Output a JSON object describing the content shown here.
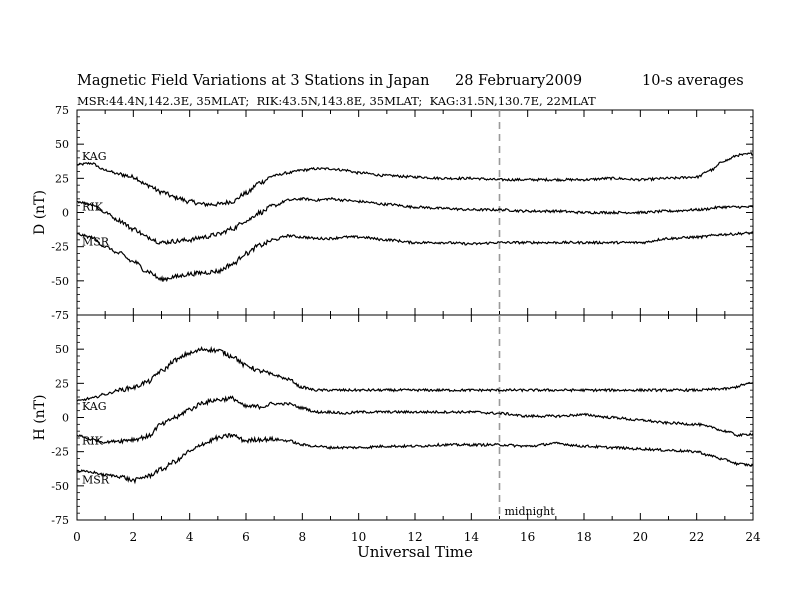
{
  "header": {
    "title": "Magnetic Field Variations at 3 Stations in Japan",
    "date": "28 February2009",
    "averaging": "10-s averages",
    "stations_line": "MSR:44.4N,142.3E, 35MLAT;  RIK:43.5N,143.8E, 35MLAT;  KAG:31.5N,130.7E, 22MLAT"
  },
  "colors": {
    "trace": "#000000",
    "midnight_line": "#9a9a9a",
    "background": "#ffffff"
  },
  "chart_data": [
    {
      "type": "line",
      "panel": "D",
      "ylabel": "D (nT)",
      "xlabel": "",
      "xlim": [
        0,
        24
      ],
      "ylim": [
        -75,
        75
      ],
      "yticks": [
        "75",
        "50",
        "25",
        "0",
        "-25",
        "-50",
        "-75"
      ],
      "x_tick_labels": [],
      "grid": false,
      "series": [
        {
          "name": "KAG",
          "x": [
            0,
            0.5,
            1,
            1.5,
            2,
            2.5,
            3,
            3.5,
            4,
            4.5,
            5,
            5.5,
            6,
            6.5,
            7,
            7.5,
            8,
            8.5,
            9,
            9.5,
            10,
            11,
            12,
            13,
            14,
            15,
            16,
            17,
            18,
            19,
            20,
            21,
            22,
            22.5,
            23,
            23.5,
            24
          ],
          "y": [
            35,
            36,
            31,
            28,
            26,
            20,
            15,
            11,
            8,
            6,
            6,
            8,
            14,
            22,
            27,
            29,
            31,
            32,
            32,
            31,
            29,
            27,
            26,
            25,
            25,
            24,
            24,
            24,
            24,
            25,
            24,
            25,
            26,
            31,
            38,
            42,
            43
          ]
        },
        {
          "name": "RIK",
          "x": [
            0,
            0.5,
            1,
            1.5,
            2,
            2.5,
            3,
            3.5,
            4,
            4.5,
            5,
            5.5,
            6,
            6.5,
            7,
            7.5,
            8,
            8.5,
            9,
            9.5,
            10,
            11,
            12,
            13,
            14,
            15,
            16,
            17,
            18,
            19,
            20,
            21,
            22,
            23,
            24
          ],
          "y": [
            8,
            6,
            0,
            -6,
            -12,
            -18,
            -22,
            -21,
            -20,
            -18,
            -16,
            -12,
            -6,
            0,
            5,
            9,
            10,
            9,
            10,
            9,
            8,
            6,
            4,
            3,
            2,
            2,
            1,
            1,
            0,
            0,
            0,
            1,
            2,
            4,
            4
          ]
        },
        {
          "name": "MSR",
          "x": [
            0,
            0.5,
            1,
            1.5,
            2,
            2.5,
            3,
            3.5,
            4,
            4.5,
            5,
            5.5,
            6,
            6.5,
            7,
            7.5,
            8,
            8.5,
            9,
            9.5,
            10,
            11,
            12,
            13,
            14,
            15,
            16,
            17,
            18,
            19,
            20,
            21,
            22,
            23,
            24
          ],
          "y": [
            -16,
            -18,
            -25,
            -30,
            -36,
            -43,
            -49,
            -47,
            -45,
            -44,
            -43,
            -38,
            -30,
            -24,
            -20,
            -17,
            -18,
            -19,
            -19,
            -18,
            -18,
            -20,
            -22,
            -22,
            -23,
            -22,
            -22,
            -22,
            -22,
            -22,
            -22,
            -19,
            -18,
            -16,
            -15
          ]
        }
      ]
    },
    {
      "type": "line",
      "panel": "H",
      "ylabel": "H (nT)",
      "xlabel": "Universal Time",
      "xlim": [
        0,
        24
      ],
      "ylim": [
        -75,
        75
      ],
      "yticks": [
        "50",
        "25",
        "0",
        "-25",
        "-50",
        "-75"
      ],
      "x_tick_labels": [
        "0",
        "2",
        "4",
        "6",
        "8",
        "10",
        "12",
        "14",
        "16",
        "18",
        "20",
        "22",
        "24"
      ],
      "grid": false,
      "series": [
        {
          "name": "KAG",
          "x": [
            0,
            0.5,
            1,
            1.5,
            2,
            2.5,
            3,
            3.5,
            4,
            4.5,
            5,
            5.5,
            6,
            6.5,
            7,
            7.5,
            8,
            8.5,
            9,
            9.5,
            10,
            11,
            12,
            13,
            14,
            15,
            16,
            17,
            18,
            19,
            20,
            21,
            22,
            23,
            24
          ],
          "y": [
            12,
            14,
            17,
            20,
            22,
            26,
            34,
            42,
            47,
            50,
            49,
            45,
            38,
            34,
            31,
            28,
            22,
            20,
            20,
            20,
            20,
            20,
            20,
            20,
            20,
            20,
            20,
            20,
            20,
            20,
            20,
            20,
            20,
            21,
            25
          ]
        },
        {
          "name": "RIK",
          "x": [
            0,
            0.5,
            1,
            1.5,
            2,
            2.5,
            3,
            3.5,
            4,
            4.5,
            5,
            5.5,
            6,
            6.5,
            7,
            7.5,
            8,
            8.5,
            9,
            9.5,
            10,
            11,
            12,
            13,
            14,
            15,
            16,
            17,
            18,
            19,
            20,
            21,
            22,
            22.5,
            23,
            23.5,
            24
          ],
          "y": [
            -13,
            -16,
            -18,
            -17,
            -16,
            -14,
            -5,
            0,
            6,
            11,
            13,
            14,
            8,
            8,
            10,
            10,
            7,
            4,
            4,
            3,
            4,
            4,
            4,
            4,
            4,
            3,
            1,
            1,
            2,
            0,
            -2,
            -4,
            -5,
            -7,
            -10,
            -13,
            -12
          ]
        },
        {
          "name": "MSR",
          "x": [
            0,
            0.5,
            1,
            1.5,
            2,
            2.5,
            3,
            3.5,
            4,
            4.5,
            5,
            5.5,
            6,
            6.5,
            7,
            7.5,
            8,
            8.5,
            9,
            9.5,
            10,
            11,
            12,
            13,
            14,
            15,
            16,
            17,
            18,
            19,
            20,
            21,
            22,
            22.5,
            23,
            23.5,
            24
          ],
          "y": [
            -39,
            -40,
            -42,
            -43,
            -46,
            -43,
            -38,
            -32,
            -25,
            -19,
            -15,
            -13,
            -17,
            -16,
            -16,
            -17,
            -20,
            -21,
            -22,
            -22,
            -22,
            -21,
            -21,
            -20,
            -20,
            -20,
            -21,
            -19,
            -21,
            -22,
            -23,
            -24,
            -25,
            -28,
            -31,
            -34,
            -35
          ]
        }
      ]
    }
  ],
  "annotations": {
    "midnight_label": "midnight",
    "midnight_ut": 15,
    "station_labels": [
      "KAG",
      "RIK",
      "MSR"
    ]
  }
}
